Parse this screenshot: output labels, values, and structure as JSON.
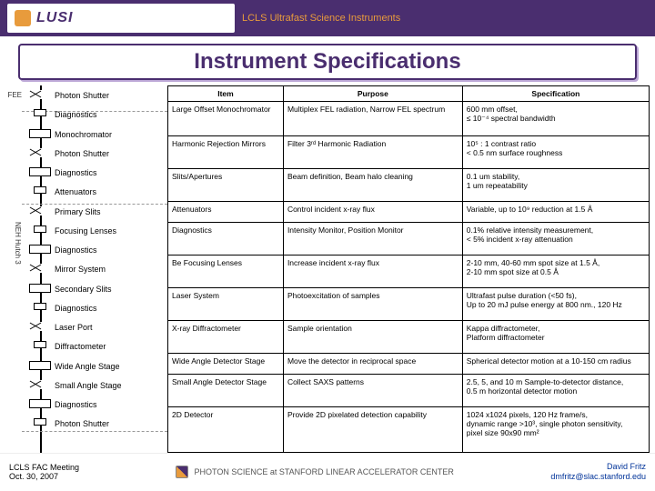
{
  "header": {
    "logo_text": "LUSI",
    "subtitle": "LCLS Ultrafast Science Instruments"
  },
  "title": "Instrument Specifications",
  "rails": {
    "fee": "FEE",
    "neh": "NEH Hutch 3"
  },
  "components": [
    "Photon Shutter",
    "Diagnostics",
    "Monochromator",
    "Photon Shutter",
    "Diagnostics",
    "Attenuators",
    "Primary Slits",
    "Focusing Lenses",
    "Diagnostics",
    "Mirror System",
    "Secondary Slits",
    "Diagnostics",
    "Laser Port",
    "Diffractometer",
    "Wide Angle Stage",
    "Small Angle Stage",
    "Diagnostics",
    "Photon Shutter"
  ],
  "table": {
    "headers": [
      "Item",
      "Purpose",
      "Specification"
    ],
    "rows": [
      [
        "Large Offset Monochromator",
        "Multiplex FEL radiation, Narrow FEL spectrum",
        "600 mm offset,\n≤ 10⁻⁴ spectral bandwidth"
      ],
      [
        "Harmonic Rejection Mirrors",
        "Filter 3ʳᵈ Harmonic Radiation",
        "10⁵ : 1 contrast ratio\n< 0.5 nm surface roughness"
      ],
      [
        "Slits/Apertures",
        "Beam definition, Beam halo cleaning",
        "0.1 um stability,\n1 um repeatability"
      ],
      [
        "Attenuators",
        "Control incident x-ray flux",
        "Variable, up to 10⁹ reduction at 1.5 Å"
      ],
      [
        "Diagnostics",
        "Intensity Monitor, Position Monitor",
        "0.1% relative intensity measurement,\n< 5% incident x-ray attenuation"
      ],
      [
        "Be Focusing Lenses",
        "Increase incident x-ray flux",
        "2-10 mm, 40-60 mm spot size at 1.5 Å,\n2-10 mm spot size at 0.5 Å"
      ],
      [
        "Laser System",
        "Photoexcitation of samples",
        "Ultrafast pulse duration (<50 fs),\nUp to 20 mJ pulse energy at 800 nm., 120 Hz"
      ],
      [
        "X-ray Diffractometer",
        "Sample orientation",
        "Kappa diffractometer,\nPlatform diffractometer"
      ],
      [
        "Wide Angle Detector Stage",
        "Move the detector in reciprocal space",
        "Spherical detector motion at a 10-150 cm radius"
      ],
      [
        "Small Angle Detector Stage",
        "Collect SAXS patterns",
        "2.5, 5, and 10 m Sample-to-detector distance,\n0.5 m horizontal detector motion"
      ],
      [
        "2D Detector",
        "Provide 2D pixelated detection capability",
        "1024 x1024 pixels, 120 Hz frame/s,\ndynamic range >10³, single photon sensitivity,\npixel size 90x90 mm²"
      ]
    ]
  },
  "footer": {
    "left1": "LCLS FAC Meeting",
    "left2": "Oct. 30, 2007",
    "center": "PHOTON SCIENCE at STANFORD LINEAR ACCELERATOR CENTER",
    "right1": "David Fritz",
    "right2": "dmfritz@slac.stanford.edu"
  }
}
